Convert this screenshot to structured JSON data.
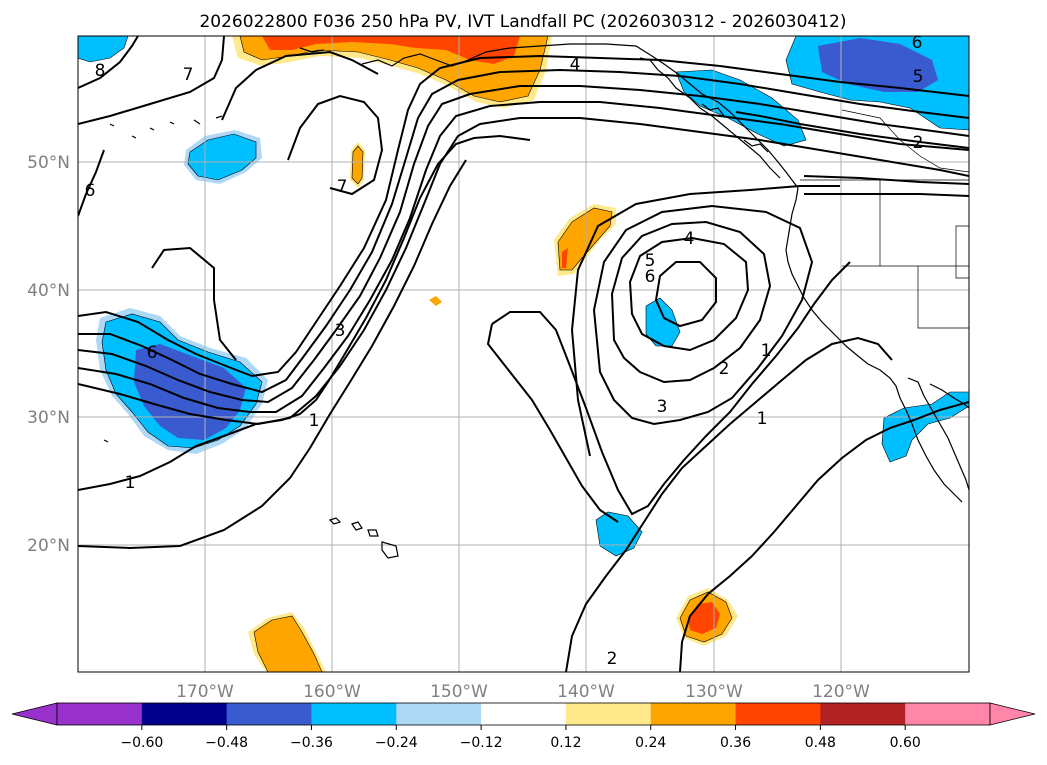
{
  "title": "2026022800 F036 250 hPa PV, IVT Landfall PC (2026030312 - 2026030412)",
  "map": {
    "lat_labels": [
      "50°N",
      "40°N",
      "30°N",
      "20°N"
    ],
    "lon_labels": [
      "170°W",
      "160°W",
      "150°W",
      "140°W",
      "130°W",
      "120°W"
    ]
  },
  "contour_labels": [
    "8",
    "7",
    "6",
    "7",
    "4",
    "6",
    "5",
    "2",
    "4",
    "5",
    "6",
    "6",
    "3",
    "2",
    "1",
    "3",
    "1",
    "1",
    "1",
    "2"
  ],
  "colorbar": {
    "ticks": [
      "−0.60",
      "−0.48",
      "−0.36",
      "−0.24",
      "−0.12",
      "0.12",
      "0.24",
      "0.36",
      "0.48",
      "0.60"
    ],
    "colors": {
      "under": "#9932cc",
      "levels": [
        "#9932cc",
        "#00008b",
        "#3a5bcf",
        "#00bfff",
        "#add8f6",
        "#ffffff",
        "#ffe98a",
        "#ffa500",
        "#ff4500",
        "#b22222",
        "#ff85a9"
      ]
    }
  },
  "anomaly_colors": {
    "neg_strong": "#3a5bcf",
    "neg_mid": "#00bfff",
    "neg_weak": "#add8f6",
    "pos_weak": "#ffe98a",
    "pos_mid": "#ffa500",
    "pos_strong": "#ff4500"
  }
}
